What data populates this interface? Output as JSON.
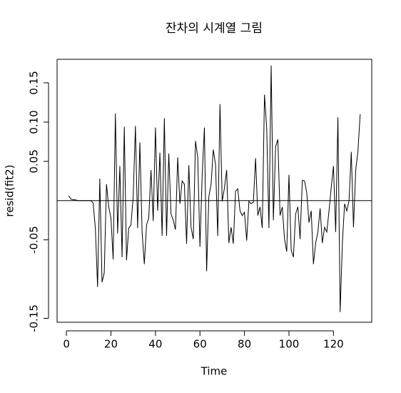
{
  "chart_data": {
    "type": "line",
    "title": "잔차의 시계열 그림",
    "x_label": "Time",
    "y_label": "resid(fit2)",
    "x": [
      1,
      2,
      3,
      4,
      5,
      6,
      7,
      8,
      9,
      10,
      11,
      12,
      13,
      14,
      15,
      16,
      17,
      18,
      19,
      20,
      21,
      22,
      23,
      24,
      25,
      26,
      27,
      28,
      29,
      30,
      31,
      32,
      33,
      34,
      35,
      36,
      37,
      38,
      39,
      40,
      41,
      42,
      43,
      44,
      45,
      46,
      47,
      48,
      49,
      50,
      51,
      52,
      53,
      54,
      55,
      56,
      57,
      58,
      59,
      60,
      61,
      62,
      63,
      64,
      65,
      66,
      67,
      68,
      69,
      70,
      71,
      72,
      73,
      74,
      75,
      76,
      77,
      78,
      79,
      80,
      81,
      82,
      83,
      84,
      85,
      86,
      87,
      88,
      89,
      90,
      91,
      92,
      93,
      94,
      95,
      96,
      97,
      98,
      99,
      100,
      101,
      102,
      103,
      104,
      105,
      106,
      107,
      108,
      109,
      110,
      111,
      112,
      113,
      114,
      115,
      116,
      117,
      118,
      119,
      120,
      121,
      122,
      123,
      124,
      125,
      126,
      127,
      128,
      129,
      130,
      131,
      132
    ],
    "series": [
      {
        "name": "resid",
        "color": "#000000",
        "values": [
          0.006,
          0.002,
          0.001,
          0.001,
          0,
          0,
          0,
          0,
          0,
          0,
          0,
          -0.003,
          -0.035,
          -0.11,
          0.028,
          -0.104,
          -0.092,
          0.021,
          -0.008,
          -0.022,
          -0.075,
          0.111,
          -0.042,
          0.044,
          -0.072,
          0.094,
          -0.076,
          -0.035,
          -0.031,
          0.005,
          0.095,
          -0.035,
          0.074,
          -0.04,
          -0.081,
          -0.031,
          -0.022,
          0.039,
          -0.026,
          0.093,
          -0.013,
          0.061,
          -0.045,
          0.105,
          -0.045,
          0.06,
          -0.017,
          -0.025,
          -0.037,
          0.055,
          -0.004,
          0.025,
          0.021,
          -0.055,
          0.045,
          -0.034,
          -0.049,
          0.076,
          0.055,
          -0.059,
          0.032,
          0.093,
          -0.09,
          0.005,
          0.021,
          0.065,
          0.046,
          -0.045,
          0.123,
          -0.001,
          0.016,
          0.039,
          -0.054,
          -0.034,
          -0.055,
          0.012,
          0.015,
          -0.013,
          -0.019,
          -0.015,
          -0.051,
          -0.001,
          -0.004,
          -0.002,
          0.054,
          -0.019,
          -0.008,
          -0.035,
          0.135,
          0.092,
          -0.035,
          0.172,
          -0.025,
          0.069,
          0.078,
          -0.019,
          -0.008,
          -0.049,
          -0.065,
          0.033,
          -0.063,
          -0.072,
          -0.017,
          -0.008,
          -0.049,
          0.026,
          0.025,
          0.01,
          -0.028,
          -0.013,
          -0.081,
          -0.054,
          -0.04,
          -0.01,
          -0.054,
          -0.034,
          -0.04,
          -0.013,
          0.017,
          0.044,
          -0.04,
          0.106,
          -0.142,
          -0.054,
          -0.004,
          -0.013,
          0.0,
          0.062,
          -0.034,
          0.039,
          0.063,
          0.11
        ]
      }
    ],
    "reference_line": 0,
    "xlim": [
      -4.2,
      137.2
    ],
    "xticks": [
      0,
      20,
      40,
      60,
      80,
      100,
      120
    ],
    "ylim": [
      -0.155,
      0.18
    ],
    "yticks": [
      0.15,
      {
        "value": 0.1,
        "label": "0.10"
      },
      0.05,
      -0.05,
      -0.15
    ]
  }
}
